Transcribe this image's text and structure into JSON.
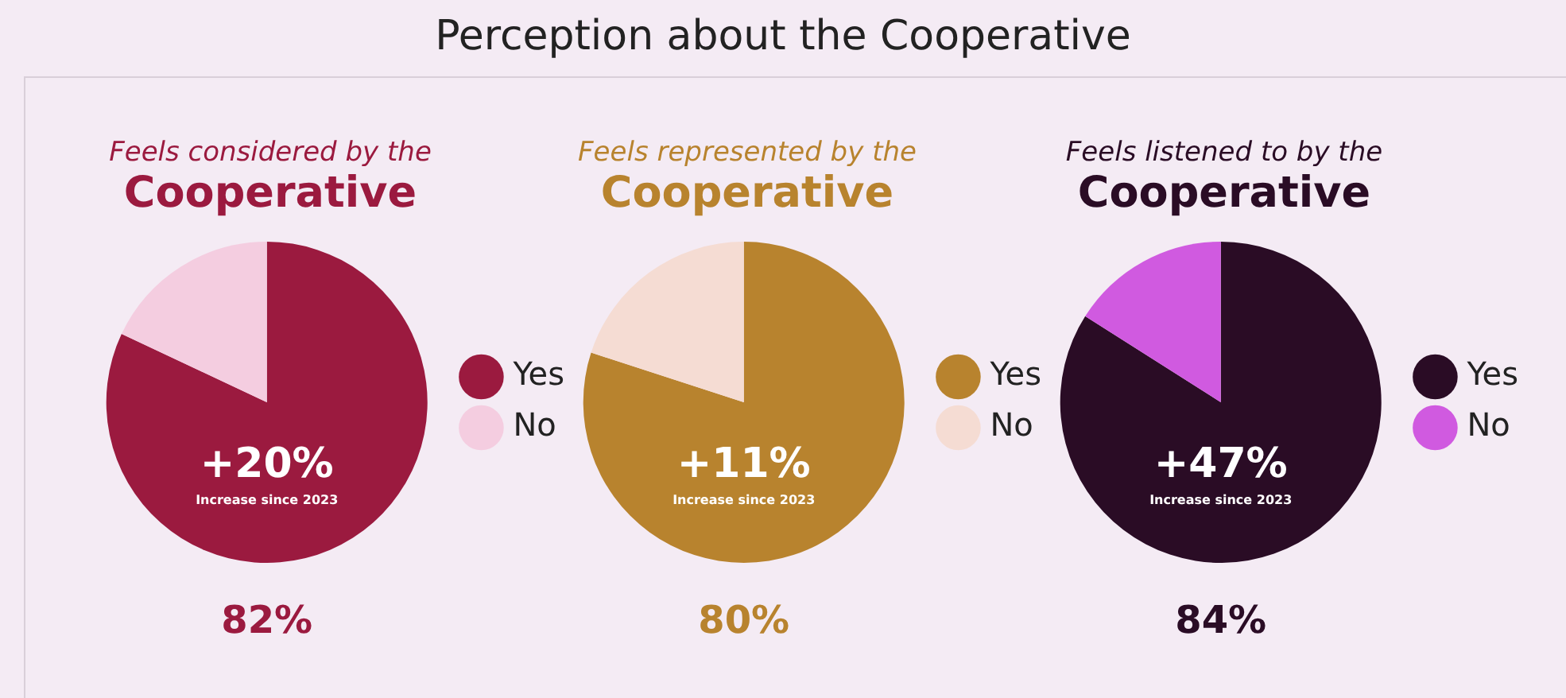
{
  "chart_data": [
    {
      "type": "other",
      "title": "Perception about the Cooperative"
    },
    {
      "type": "pie",
      "title": "Feels considered by the",
      "subtitle": "Cooperative",
      "categories": [
        "Yes",
        "No"
      ],
      "values": [
        82,
        18
      ],
      "colors": [
        "#9b1a3f",
        "#f4cde0"
      ],
      "value_labels": [
        "82%",
        null
      ],
      "annotations": [
        "+20%",
        "Increase since 2023"
      ],
      "legend": "right"
    },
    {
      "type": "pie",
      "title": "Feels represented by the",
      "subtitle": "Cooperative",
      "categories": [
        "Yes",
        "No"
      ],
      "values": [
        80,
        20
      ],
      "colors": [
        "#b8832e",
        "#f5dcd3"
      ],
      "value_labels": [
        "80%",
        null
      ],
      "annotations": [
        "+11%",
        "Increase since 2023"
      ],
      "legend": "right"
    },
    {
      "type": "pie",
      "title": "Feels listened to by the",
      "subtitle": "Cooperative",
      "categories": [
        "Yes",
        "No"
      ],
      "values": [
        84,
        16
      ],
      "colors": [
        "#2a0c25",
        "#d05ae0"
      ],
      "value_labels": [
        "84%",
        null
      ],
      "annotations": [
        "+47%",
        "Increase since 2023"
      ],
      "legend": "right"
    }
  ]
}
